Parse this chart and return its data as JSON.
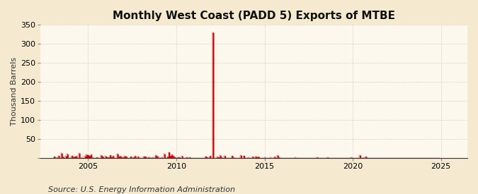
{
  "title": "Monthly West Coast (PADD 5) Exports of MTBE",
  "ylabel": "Thousand Barrels",
  "source": "Source: U.S. Energy Information Administration",
  "background_color": "#f5ead0",
  "plot_bg_color": "#fdf8ee",
  "line_color": "#cc0000",
  "ylim": [
    0,
    350
  ],
  "yticks": [
    0,
    50,
    100,
    150,
    200,
    250,
    300,
    350
  ],
  "xlim_start": 2002.3,
  "xlim_end": 2026.5,
  "xticks": [
    2005,
    2010,
    2015,
    2020,
    2025
  ],
  "title_fontsize": 11,
  "ylabel_fontsize": 8,
  "tick_fontsize": 8,
  "source_fontsize": 8,
  "grid_color": "#bbbbbb",
  "grid_linestyle": ":"
}
